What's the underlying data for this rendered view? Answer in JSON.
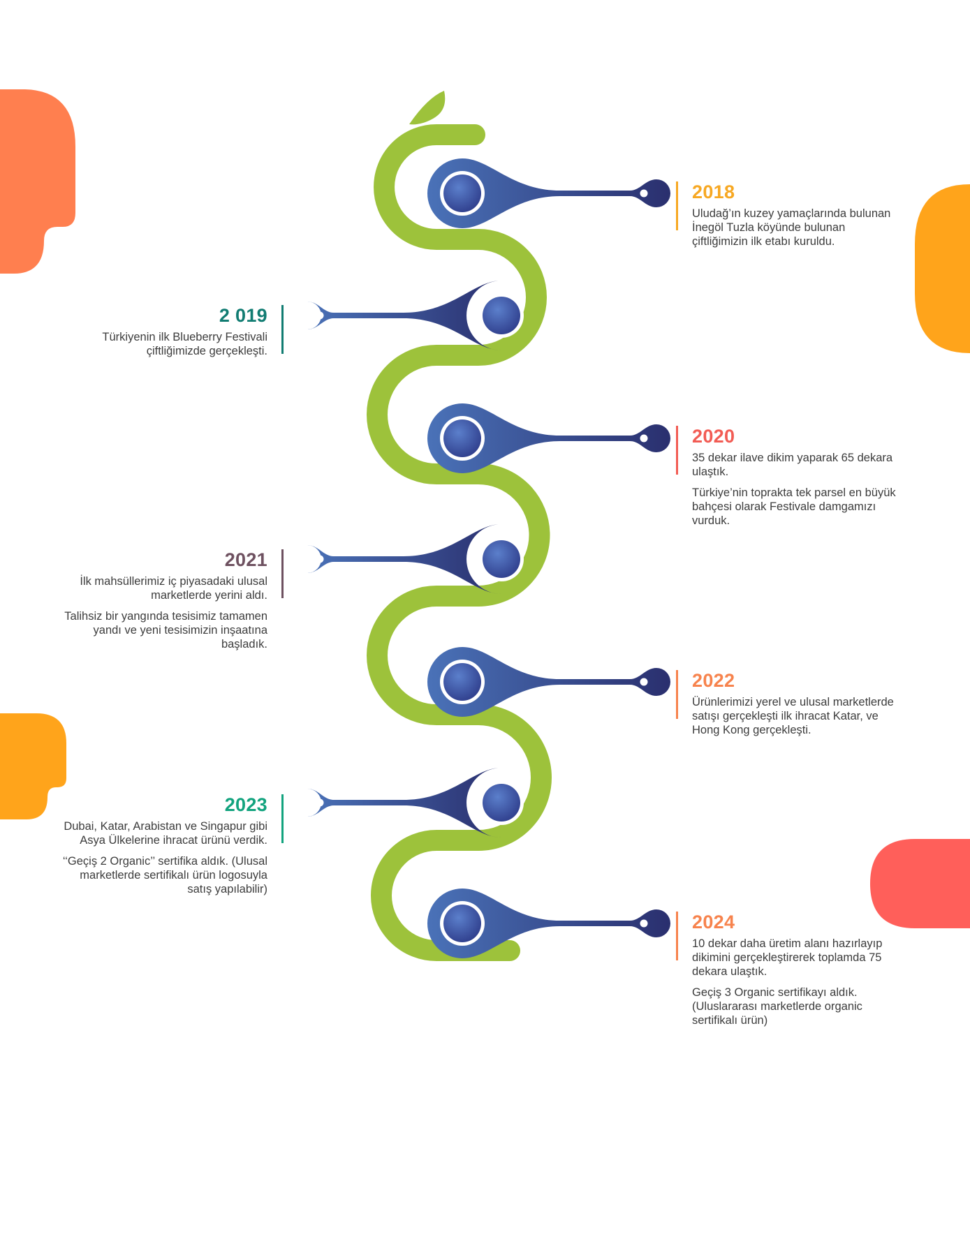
{
  "timeline": {
    "colors": {
      "vine": "#9dc23b",
      "leaf": "#9dc23b",
      "pin_light": "#4a72b8",
      "pin_dark": "#2a2f6e",
      "blob_orange": "#ff7f4f",
      "blob_amber": "#ffa41b",
      "blob_red": "#ff5f5a"
    },
    "entries": [
      {
        "year": "2018",
        "color": "#f7a823",
        "paragraphs": [
          "Uludağ’ın kuzey yamaçlarında bulunan İnegöl Tuzla köyünde bulunan çiftliğimizin ilk etabı kuruldu."
        ]
      },
      {
        "year": "2 019",
        "color": "#117c72",
        "paragraphs": [
          "Türkiyenin ilk Blueberry Festivali çiftliğimizde gerçekleşti."
        ]
      },
      {
        "year": "2020",
        "color": "#f25c54",
        "paragraphs": [
          "35 dekar ilave dikim yaparak 65 dekara ulaştık.",
          "Türkiye’nin toprakta tek parsel en büyük bahçesi olarak Festivale damgamızı vurduk."
        ]
      },
      {
        "year": "2021",
        "color": "#6e5160",
        "paragraphs": [
          "İlk  mahsüllerimiz iç piyasadaki ulusal marketlerde yerini aldı.",
          "Talihsiz bir yangında tesisimiz tamamen yandı ve yeni tesisimizin inşaatına başladık."
        ]
      },
      {
        "year": "2022",
        "color": "#f7834d",
        "paragraphs": [
          "Ürünlerimizi yerel ve ulusal marketlerde satışı gerçekleşti ilk ihracat Katar, ve Hong Kong gerçekleşti."
        ]
      },
      {
        "year": "2023",
        "color": "#12a37e",
        "paragraphs": [
          "Dubai, Katar, Arabistan ve Singapur gibi Asya Ülkelerine ihracat ürünü verdik.",
          "‘‘Geçiş 2 Organic’’ sertifika aldık. (Ulusal marketlerde sertifikalı ürün logosuyla satış yapılabilir)"
        ]
      },
      {
        "year": "2024",
        "color": "#f7834d",
        "paragraphs": [
          "10 dekar daha üretim alanı hazırlayıp dikimini gerçekleştirerek toplamda 75 dekara ulaştık.",
          "Geçiş 3 Organic sertifikayı aldık. (Uluslararası marketlerde organic sertifikalı ürün)"
        ]
      }
    ]
  }
}
